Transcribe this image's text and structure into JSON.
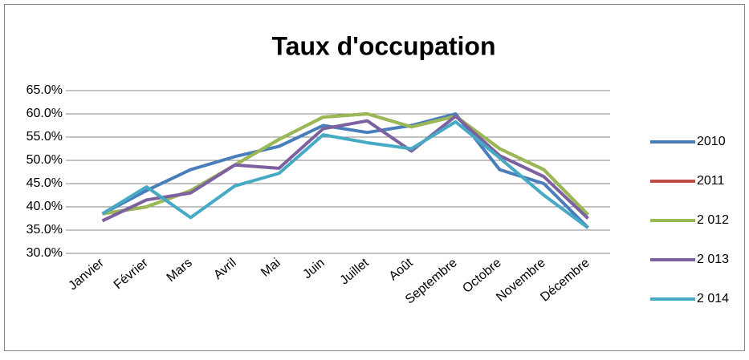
{
  "chart_data": {
    "type": "line",
    "title": "Taux d'occupation",
    "categories": [
      "Janvier",
      "Février",
      "Mars",
      "Avril",
      "Mai",
      "Juin",
      "Juillet",
      "Août",
      "Septembre",
      "Octobre",
      "Novembre",
      "Décembre"
    ],
    "series": [
      {
        "name": "2010",
        "color": "#4a7ebb",
        "values": [
          38.5,
          43.5,
          48,
          50.8,
          53,
          57.5,
          56,
          57.5,
          60,
          48,
          45,
          35.5
        ]
      },
      {
        "name": "2011",
        "color": "#be4b48",
        "values": [
          38.5,
          40,
          43.5,
          49,
          54.5,
          59.3,
          60,
          57.2,
          59.5,
          52.5,
          48,
          38.3
        ]
      },
      {
        "name": "2 012",
        "color": "#98b954",
        "values": [
          38.5,
          40,
          43.5,
          49,
          54.5,
          59.3,
          60,
          57.2,
          59.5,
          52.5,
          48,
          38.3
        ]
      },
      {
        "name": "2 013",
        "color": "#7d60a0",
        "values": [
          37,
          41.5,
          43,
          49,
          48.3,
          56.8,
          58.5,
          52,
          59.5,
          51,
          46.5,
          37.5
        ]
      },
      {
        "name": "2 014",
        "color": "#46aac5",
        "values": [
          38.5,
          44.3,
          37.7,
          44.5,
          47.2,
          55.5,
          53.8,
          52.5,
          58.3,
          50.5,
          42.5,
          35.5
        ]
      }
    ],
    "ylim": [
      30,
      65
    ],
    "yticks": [
      {
        "value": 30,
        "label": "30.0%"
      },
      {
        "value": 35,
        "label": "35.0%"
      },
      {
        "value": 40,
        "label": "40.0%"
      },
      {
        "value": 45,
        "label": "45.0%"
      },
      {
        "value": 50,
        "label": "50.0%"
      },
      {
        "value": 55,
        "label": "55.0%"
      },
      {
        "value": 60,
        "label": "60.0%"
      },
      {
        "value": 65,
        "label": "65.0%"
      }
    ],
    "grid": true,
    "legend": "right"
  }
}
